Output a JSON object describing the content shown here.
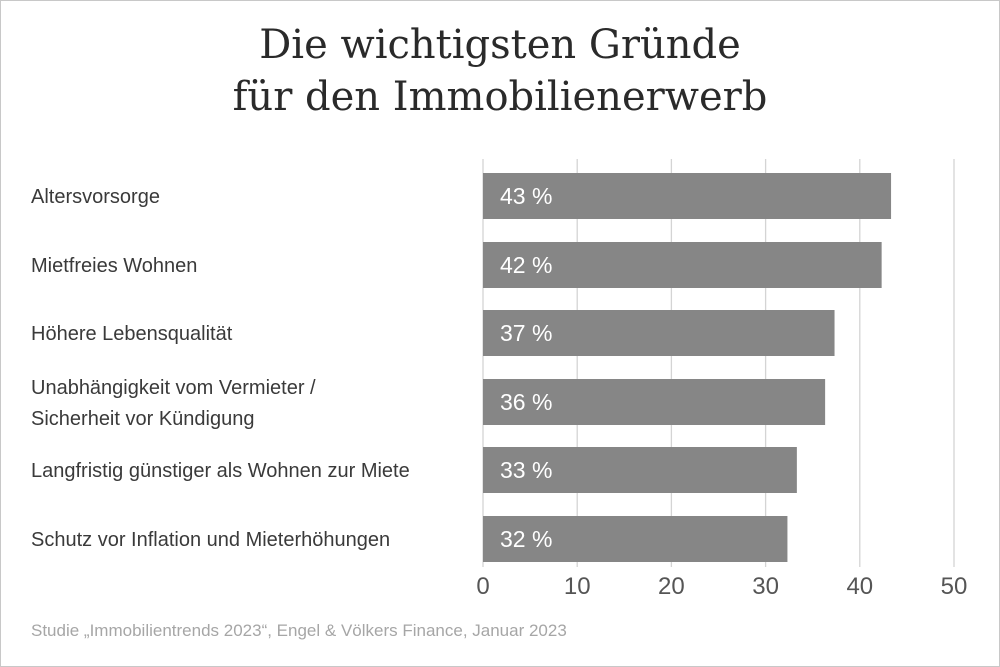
{
  "chart_data": {
    "type": "bar",
    "orientation": "horizontal",
    "title_lines": [
      "Die wichtigsten Gründe",
      "für den Immobilienerwerb"
    ],
    "categories": [
      [
        "Altersvorsorge"
      ],
      [
        "Mietfreies Wohnen"
      ],
      [
        "Höhere Lebensqualität"
      ],
      [
        "Unabhängigkeit vom Vermieter /",
        "Sicherheit vor Kündigung"
      ],
      [
        "Langfristig günstiger als Wohnen zur Miete"
      ],
      [
        "Schutz vor Inflation und Mieterhöhungen"
      ]
    ],
    "values": [
      43,
      42,
      37,
      36,
      33,
      32
    ],
    "data_labels": [
      "43 %",
      "42 %",
      "37 %",
      "36 %",
      "33 %",
      "32 %"
    ],
    "xlim": [
      0,
      50
    ],
    "xticks": [
      "0",
      "10",
      "20",
      "30",
      "40",
      "50"
    ],
    "grid": true,
    "bar_color": "#868686",
    "source": "Studie „Immobilientrends 2023“, Engel & Völkers Finance, Januar 2023"
  }
}
